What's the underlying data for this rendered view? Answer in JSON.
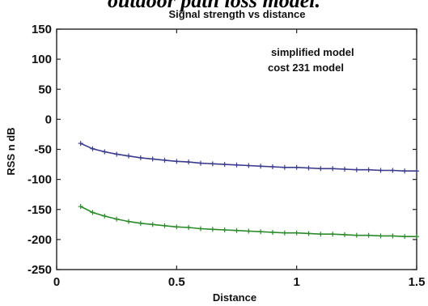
{
  "figure": {
    "caption": "outdoor path loss model."
  },
  "chart_data": {
    "type": "line",
    "title": "Signal strength vs distance",
    "xlabel": "Distance",
    "ylabel": "RSS n dB",
    "xlim": [
      0,
      1.5
    ],
    "ylim": [
      -250,
      150
    ],
    "x_ticks": [
      0,
      0.5,
      1,
      1.5
    ],
    "x_tick_labels": [
      "0",
      "0.5",
      "1",
      "1.5"
    ],
    "y_ticks": [
      150,
      100,
      50,
      0,
      -50,
      -100,
      -150,
      -200,
      -250
    ],
    "y_tick_labels": [
      "150",
      "100",
      "50",
      "0",
      "-50",
      "-100",
      "-150",
      "-200",
      "-250"
    ],
    "grid": false,
    "legend_position": "top-right",
    "x": [
      0.1,
      0.15,
      0.2,
      0.25,
      0.3,
      0.35,
      0.4,
      0.45,
      0.5,
      0.55,
      0.6,
      0.65,
      0.7,
      0.75,
      0.8,
      0.85,
      0.9,
      0.95,
      1.0,
      1.05,
      1.1,
      1.15,
      1.2,
      1.25,
      1.3,
      1.35,
      1.4,
      1.45,
      1.5
    ],
    "series": [
      {
        "name": "simplified model",
        "color": "#3a3a8c",
        "marker": "plus",
        "values": [
          -40,
          -49,
          -54,
          -58,
          -61,
          -64,
          -66,
          -68,
          -70,
          -71,
          -73,
          -74,
          -75,
          -76,
          -77,
          -78,
          -79,
          -80,
          -80,
          -81,
          -82,
          -82,
          -83,
          -84,
          -84,
          -85,
          -85,
          -86,
          -86
        ]
      },
      {
        "name": "cost 231 model",
        "color": "#2a8a2a",
        "marker": "plus",
        "values": [
          -145,
          -155,
          -161,
          -166,
          -170,
          -173,
          -175,
          -177,
          -179,
          -180,
          -182,
          -183,
          -184,
          -185,
          -186,
          -187,
          -188,
          -189,
          -189,
          -190,
          -191,
          -191,
          -192,
          -193,
          -193,
          -194,
          -194,
          -195,
          -195
        ]
      }
    ]
  }
}
